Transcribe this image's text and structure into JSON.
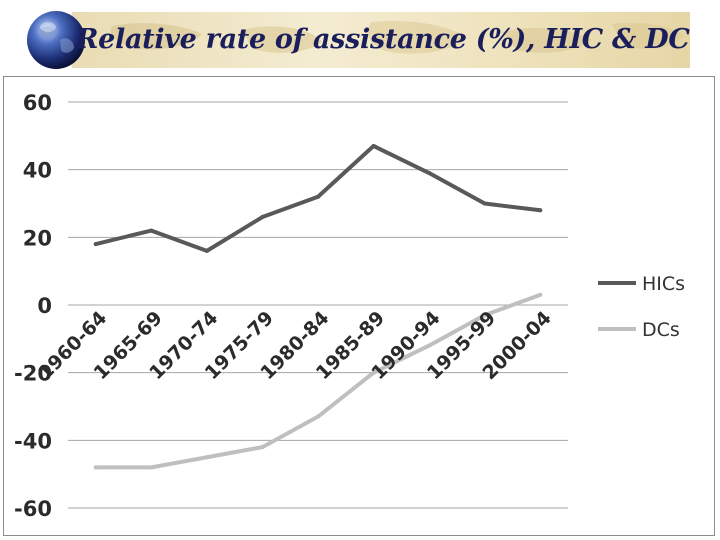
{
  "header": {
    "title": "Relative rate of assistance (%), HIC & DC"
  },
  "colors": {
    "title": "#1a1f5c",
    "hics": "#595959",
    "dcs": "#bfbfbf",
    "grid": "#a6a6a6"
  },
  "icons": {
    "logo": "globe-icon"
  },
  "chart_data": {
    "type": "line",
    "title": "Relative rate of assistance (%), HIC & DC",
    "xlabel": "",
    "ylabel": "",
    "categories": [
      "1960-64",
      "1965-69",
      "1970-74",
      "1975-79",
      "1980-84",
      "1985-89",
      "1990-94",
      "1995-99",
      "2000-04"
    ],
    "ylim": [
      -60,
      60
    ],
    "yticks": [
      60,
      40,
      20,
      0,
      -20,
      -40,
      -60
    ],
    "grid": true,
    "legend_position": "right",
    "series": [
      {
        "name": "HICs",
        "values": [
          18,
          22,
          16,
          26,
          32,
          47,
          39,
          30,
          28
        ]
      },
      {
        "name": "DCs",
        "values": [
          -48,
          -48,
          -45,
          -42,
          -33,
          -20,
          -12,
          -3,
          3
        ]
      }
    ]
  }
}
